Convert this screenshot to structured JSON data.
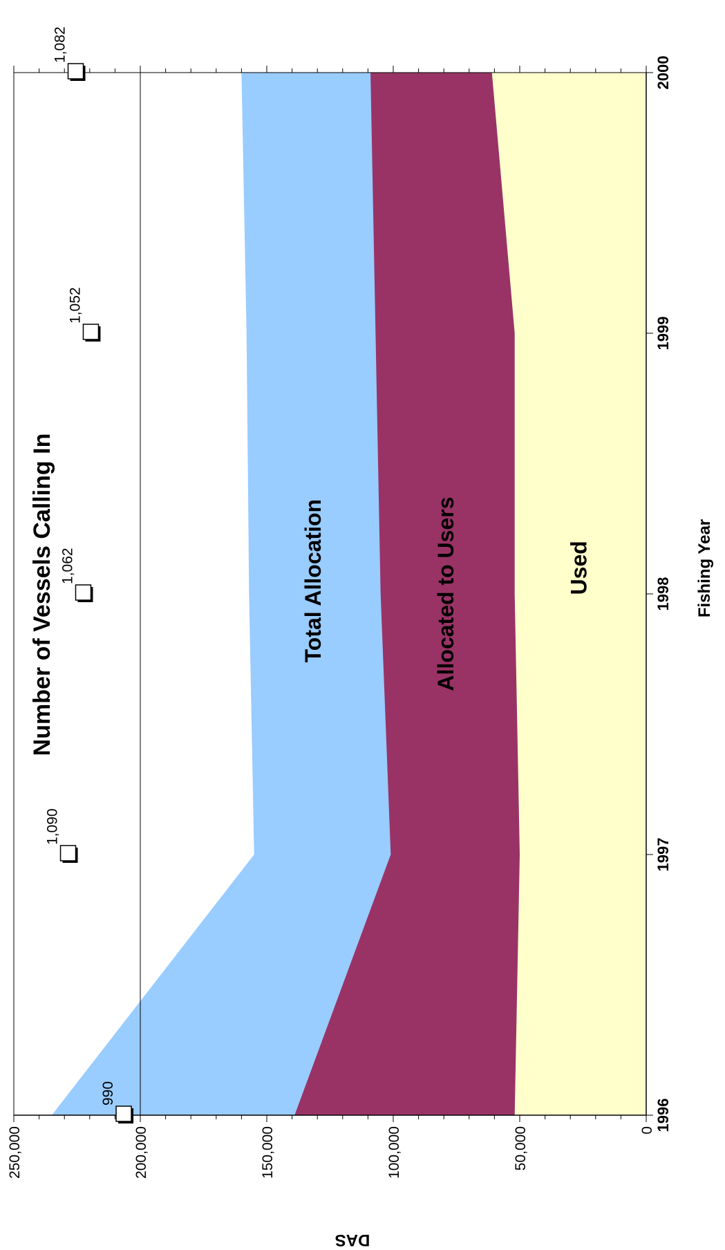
{
  "chart_data": {
    "type": "area",
    "title": "Number of Vessels Calling In",
    "xlabel": "Fishing Year",
    "ylabel": "DAS",
    "x": [
      1996,
      1997,
      1998,
      1999,
      2000
    ],
    "x_tick_labels": [
      "1996",
      "1997",
      "1998",
      "1999",
      "2000"
    ],
    "ylim": [
      0,
      250000
    ],
    "y_tick_labels": [
      "0",
      "50,000",
      "100,000",
      "150,000",
      "200,000",
      "250,000"
    ],
    "reference_line_y": 200000,
    "series": [
      {
        "name": "Total Allocation",
        "values": [
          235000,
          155000,
          157000,
          158000,
          160000
        ],
        "color": "#99ccff"
      },
      {
        "name": "Allocated to Users",
        "values": [
          139000,
          101000,
          105000,
          107000,
          109000
        ],
        "color": "#993366"
      },
      {
        "name": "Used",
        "values": [
          52000,
          50000,
          52000,
          52000,
          61000
        ],
        "color": "#ffffcc"
      }
    ],
    "vessels_calling_in": [
      {
        "x": 1996,
        "y": 206000,
        "label": "990"
      },
      {
        "x": 1997,
        "y": 228000,
        "label": "1,090"
      },
      {
        "x": 1998,
        "y": 222000,
        "label": "1,062"
      },
      {
        "x": 1999,
        "y": 219000,
        "label": "1,052"
      },
      {
        "x": 2000,
        "y": 225000,
        "label": "1,082"
      }
    ],
    "orientation": "rotated-90"
  }
}
